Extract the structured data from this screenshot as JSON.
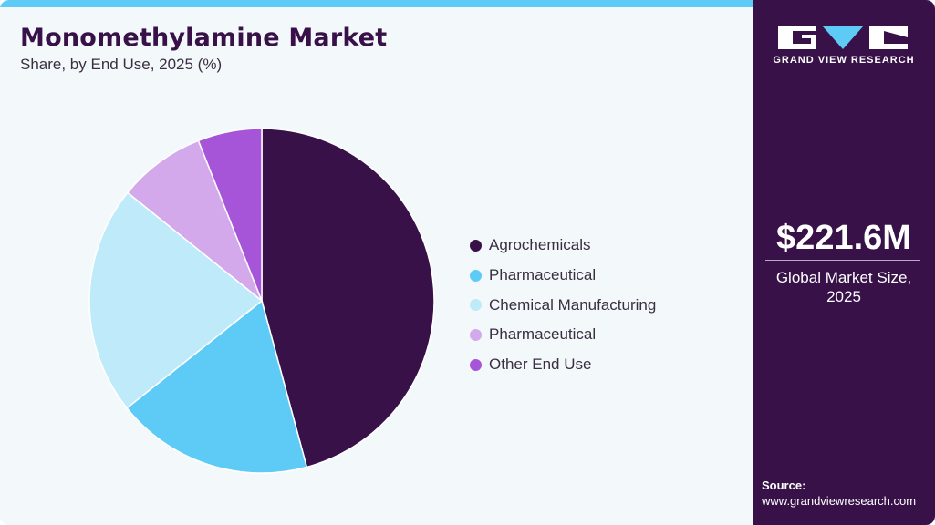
{
  "header": {
    "title": "Monomethylamine Market",
    "subtitle": "Share, by End Use, 2025 (%)"
  },
  "legend": [
    {
      "label": "Agrochemicals",
      "color": "#371147"
    },
    {
      "label": "Pharmaceutical",
      "color": "#5ecbf6"
    },
    {
      "label": "Chemical Manufacturing",
      "color": "#bfeaf9"
    },
    {
      "label": "Pharmaceutical",
      "color": "#d4a9ec"
    },
    {
      "label": "Other End Use",
      "color": "#a654d8"
    }
  ],
  "sidebar": {
    "brand": "GRAND VIEW RESEARCH",
    "market_value": "$221.6M",
    "market_label_line1": "Global Market Size,",
    "market_label_line2": "2025",
    "source_label": "Source:",
    "source_url": "www.grandviewresearch.com"
  },
  "chart_data": {
    "type": "pie",
    "title": "Monomethylamine Market",
    "subtitle": "Share, by End Use, 2025 (%)",
    "categories": [
      "Agrochemicals",
      "Pharmaceutical",
      "Chemical Manufacturing",
      "Pharmaceutical",
      "Other End Use"
    ],
    "values": [
      45.8,
      18.5,
      21.5,
      8.2,
      6.0
    ],
    "colors": [
      "#371147",
      "#5ecbf6",
      "#bfeaf9",
      "#d4a9ec",
      "#a654d8"
    ],
    "start_angle": "top, clockwise",
    "legend_position": "right"
  }
}
